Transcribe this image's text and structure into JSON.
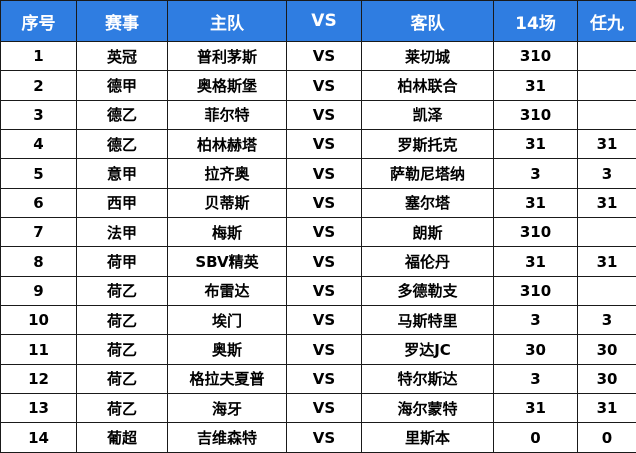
{
  "header": {
    "col_index": "序号",
    "col_league": "赛事",
    "col_home": "主队",
    "col_vs": "VS",
    "col_away": "客队",
    "col_14": "14场",
    "col_r9": "任九"
  },
  "rows": [
    {
      "no": "1",
      "league": "英冠",
      "home": "普利茅斯",
      "vs": "VS",
      "away": "莱切城",
      "p14": "310",
      "r9": ""
    },
    {
      "no": "2",
      "league": "德甲",
      "home": "奥格斯堡",
      "vs": "VS",
      "away": "柏林联合",
      "p14": "31",
      "r9": ""
    },
    {
      "no": "3",
      "league": "德乙",
      "home": "菲尔特",
      "vs": "VS",
      "away": "凯泽",
      "p14": "310",
      "r9": ""
    },
    {
      "no": "4",
      "league": "德乙",
      "home": "柏林赫塔",
      "vs": "VS",
      "away": "罗斯托克",
      "p14": "31",
      "r9": "31"
    },
    {
      "no": "5",
      "league": "意甲",
      "home": "拉齐奥",
      "vs": "VS",
      "away": "萨勒尼塔纳",
      "p14": "3",
      "r9": "3"
    },
    {
      "no": "6",
      "league": "西甲",
      "home": "贝蒂斯",
      "vs": "VS",
      "away": "塞尔塔",
      "p14": "31",
      "r9": "31"
    },
    {
      "no": "7",
      "league": "法甲",
      "home": "梅斯",
      "vs": "VS",
      "away": "朗斯",
      "p14": "310",
      "r9": ""
    },
    {
      "no": "8",
      "league": "荷甲",
      "home": "SBV精英",
      "vs": "VS",
      "away": "福伦丹",
      "p14": "31",
      "r9": "31"
    },
    {
      "no": "9",
      "league": "荷乙",
      "home": "布雷达",
      "vs": "VS",
      "away": "多德勒支",
      "p14": "310",
      "r9": ""
    },
    {
      "no": "10",
      "league": "荷乙",
      "home": "埃门",
      "vs": "VS",
      "away": "马斯特里",
      "p14": "3",
      "r9": "3"
    },
    {
      "no": "11",
      "league": "荷乙",
      "home": "奥斯",
      "vs": "VS",
      "away": "罗达JC",
      "p14": "30",
      "r9": "30"
    },
    {
      "no": "12",
      "league": "荷乙",
      "home": "格拉夫夏普",
      "vs": "VS",
      "away": "特尔斯达",
      "p14": "3",
      "r9": "30"
    },
    {
      "no": "13",
      "league": "荷乙",
      "home": "海牙",
      "vs": "VS",
      "away": "海尔蒙特",
      "p14": "31",
      "r9": "31"
    },
    {
      "no": "14",
      "league": "葡超",
      "home": "吉维森特",
      "vs": "VS",
      "away": "里斯本",
      "p14": "0",
      "r9": "0"
    }
  ]
}
